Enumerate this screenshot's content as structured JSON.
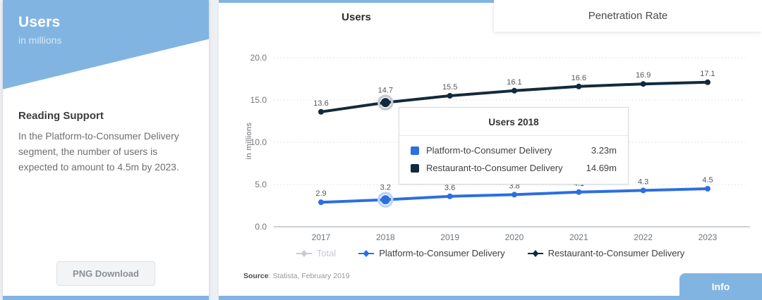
{
  "sidebar": {
    "title": "Users",
    "subtitle": "in millions",
    "reading_support": {
      "heading": "Reading Support",
      "body": "In the Platform-to-Consumer Delivery segment, the number of users is expected to amount to 4.5m by 2023."
    },
    "download_button": "PNG Download"
  },
  "tabs": [
    {
      "label": "Users",
      "active": true
    },
    {
      "label": "Penetration Rate",
      "active": false
    }
  ],
  "chart_data": {
    "type": "line",
    "title": "Users",
    "unit": "in millions",
    "x": [
      2017,
      2018,
      2019,
      2020,
      2021,
      2022,
      2023
    ],
    "series": [
      {
        "name": "Total",
        "color": "#c6cbd1",
        "halo": "#e2e5e8",
        "disabled": true,
        "values": null
      },
      {
        "name": "Platform-to-Consumer Delivery",
        "color": "#2d6ee0",
        "halo": "#bcd4f6",
        "disabled": false,
        "values": [
          2.9,
          3.2,
          3.6,
          3.8,
          4.1,
          4.3,
          4.5
        ]
      },
      {
        "name": "Restaurant-to-Consumer Delivery",
        "color": "#122a3d",
        "halo": "#c6cbd1",
        "disabled": false,
        "values": [
          13.6,
          14.7,
          15.5,
          16.1,
          16.6,
          16.9,
          17.1
        ]
      }
    ],
    "xlabel": "",
    "ylabel": "in millions",
    "ylim": [
      0,
      20
    ],
    "yticks": [
      0,
      5,
      10,
      15,
      20
    ],
    "grid": "horizontal-dotted",
    "legend_position": "bottom",
    "highlight_x": 2018
  },
  "tooltip": {
    "title": "Users 2018",
    "rows": [
      {
        "label": "Platform-to-Consumer Delivery",
        "value": "3.23m",
        "color": "#2d6ee0"
      },
      {
        "label": "Restaurant-to-Consumer Delivery",
        "value": "14.69m",
        "color": "#122a3d"
      }
    ]
  },
  "source": {
    "prefix": "Source",
    "suffix": ": Statista, February 2019"
  },
  "info_button": "Info",
  "colors": {
    "accent_blue": "#82b4e2",
    "series_platform": "#2d6ee0",
    "series_restaurant": "#122a3d",
    "disabled_gray": "#c6cbd1"
  }
}
